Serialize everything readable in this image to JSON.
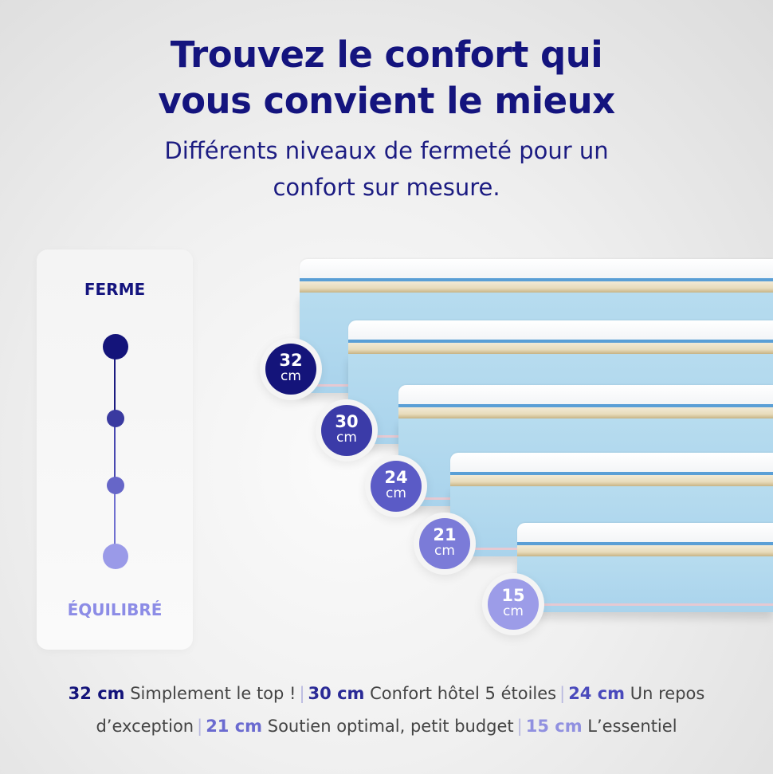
{
  "title": "Trouvez le confort qui vous convient le mieux",
  "subtitle": "Différents niveaux de fermeté pour un confort sur mesure.",
  "scale": {
    "top_label": "FERME",
    "bottom_label": "ÉQUILIBRÉ",
    "top_color": "#14147e",
    "bottom_color": "#8c8ce6",
    "levels": 4
  },
  "badges": [
    {
      "value": "32",
      "unit": "cm",
      "color": "#14147a"
    },
    {
      "value": "30",
      "unit": "cm",
      "color": "#3b3ba8"
    },
    {
      "value": "24",
      "unit": "cm",
      "color": "#5b5bc6"
    },
    {
      "value": "21",
      "unit": "cm",
      "color": "#7b7bd8"
    },
    {
      "value": "15",
      "unit": "cm",
      "color": "#9c9ce8"
    }
  ],
  "legend": [
    {
      "size": "32 cm",
      "text": "Simplement le top !",
      "color": "#14147a"
    },
    {
      "size": "30 cm",
      "text": "Confort hôtel 5 étoiles",
      "color": "#2a2a96"
    },
    {
      "size": "24 cm",
      "text": "Un repos d’exception",
      "color": "#4a4abc"
    },
    {
      "size": "21 cm",
      "text": "Soutien optimal, petit budget",
      "color": "#6a6ad0"
    },
    {
      "size": "15 cm",
      "text": "L’essentiel",
      "color": "#9090e0"
    }
  ]
}
